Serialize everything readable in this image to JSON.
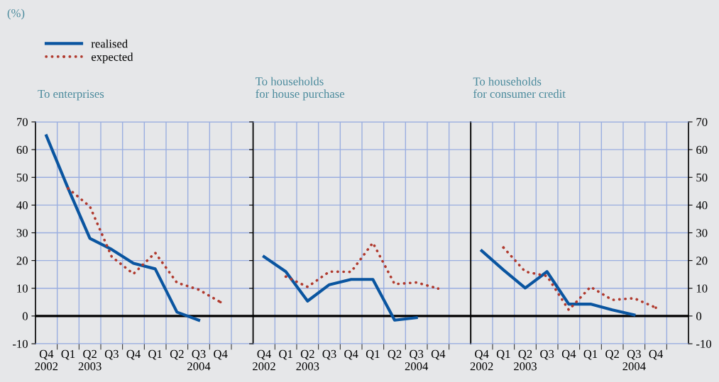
{
  "chart_data": [
    {
      "type": "line",
      "title": "To enterprises",
      "ylabel": "(%)",
      "categories": [
        "Q4\n2002",
        "Q1",
        "Q2\n2003",
        "Q3",
        "Q4",
        "Q1",
        "Q2",
        "Q3\n2004",
        "Q4",
        null
      ],
      "series": [
        {
          "name": "realised",
          "color": "#0a55a0",
          "line_style": "solid",
          "values": [
            65,
            46,
            28,
            24,
            19,
            17,
            1.4,
            -1.5,
            null,
            null
          ]
        },
        {
          "name": "expected",
          "color": "#b03a2e",
          "line_style": "dotted",
          "values": [
            null,
            46,
            39.5,
            21.4,
            15.2,
            22.8,
            12,
            9.5,
            5,
            null
          ]
        }
      ],
      "ylim": [
        -10,
        70
      ],
      "yticks": [
        -10,
        0,
        10,
        20,
        30,
        40,
        50,
        60,
        70
      ],
      "tick_labels": true,
      "grid": true,
      "legend": "top left",
      "ref_lines": [
        {
          "axis": "y",
          "value": 0,
          "color": "#000000"
        }
      ]
    },
    {
      "type": "line",
      "title": "To households\nfor house purchase",
      "categories": [
        "Q4\n2002",
        "Q1",
        "Q2\n2003",
        "Q3",
        "Q4",
        "Q1",
        "Q2",
        "Q3\n2004",
        "Q4",
        null
      ],
      "series": [
        {
          "color": "#0a55a0",
          "line_style": "solid",
          "values": [
            21.4,
            16,
            5.4,
            11.3,
            13.2,
            13.2,
            -1.5,
            -0.6,
            null,
            null
          ]
        },
        {
          "color": "#b03a2e",
          "line_style": "dotted",
          "values": [
            null,
            14.2,
            10.5,
            16,
            15.9,
            26.4,
            11.5,
            12.1,
            9.9,
            null
          ]
        }
      ],
      "ylim": [
        -10,
        70
      ],
      "tick_labels": "x",
      "grid": true,
      "ref_lines": [
        {
          "axis": "y",
          "value": 0,
          "color": "#000000"
        }
      ]
    },
    {
      "type": "line",
      "title": "To households\nfor consumer credit",
      "categories": [
        "Q4\n2002",
        "Q1",
        "Q2\n2003",
        "Q3",
        "Q4",
        "Q1",
        "Q2",
        "Q3\n2004",
        "Q4",
        null
      ],
      "series": [
        {
          "color": "#0a55a0",
          "line_style": "solid",
          "values": [
            23.5,
            16.6,
            10.1,
            16,
            4.3,
            4.3,
            2.2,
            0.4,
            null,
            null
          ]
        },
        {
          "color": "#b03a2e",
          "line_style": "dotted",
          "values": [
            null,
            24.7,
            16,
            14.4,
            2.2,
            10.5,
            5.8,
            6.4,
            3,
            null
          ]
        }
      ],
      "ylim": [
        -10,
        70
      ],
      "yticks": [
        -10,
        0,
        10,
        20,
        30,
        40,
        50,
        60,
        70
      ],
      "tick_labels": true,
      "grid": true,
      "ref_lines": [
        {
          "axis": "y",
          "value": 0,
          "color": "#000000"
        }
      ]
    }
  ]
}
